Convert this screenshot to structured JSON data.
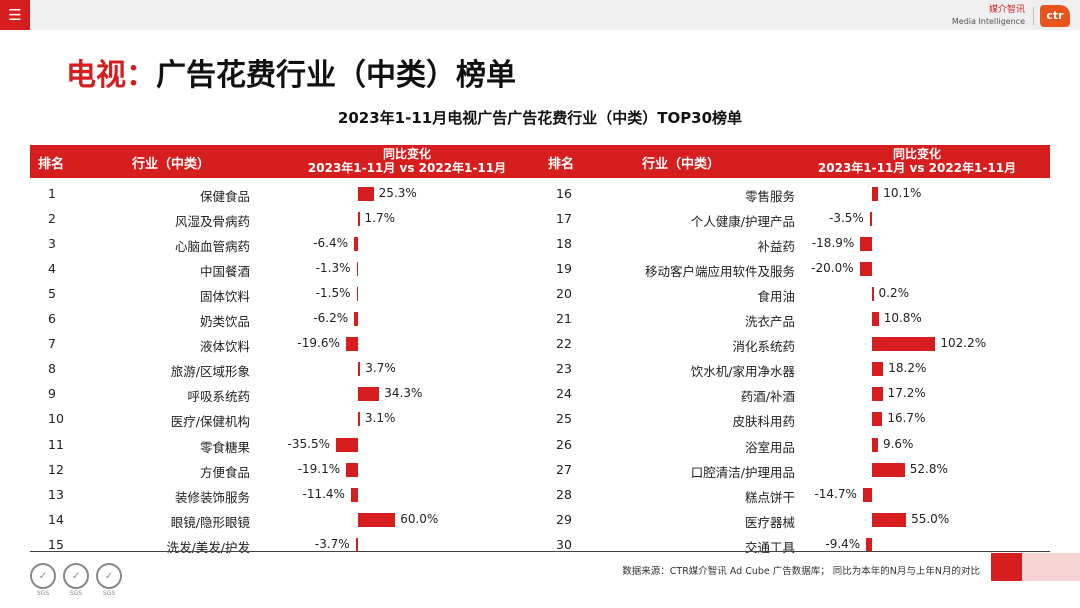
{
  "topbar": {
    "menu_icon": "☰",
    "brand_cn": "媒介智讯",
    "brand_en": "Media Intelligence",
    "brand_logo": "ctr"
  },
  "page_title": {
    "prefix": "电视：",
    "text": "广告花费行业（中类）榜单"
  },
  "headers": {
    "rank": "排名",
    "industry": "行业（中类）",
    "change_line1": "同比变化",
    "change_line2": "2023年1-11月 vs 2022年1-11月"
  },
  "source_note": "数据来源：CTR媒介智讯 Ad Cube 广告数据库； 同比为本年的N月与上年N月的对比",
  "certs": [
    "SGS",
    "SGS",
    "SGS"
  ],
  "colors": {
    "accent": "#d71e1e",
    "bar": "#d71e1e"
  },
  "chart_data": {
    "type": "bar",
    "title": "2023年1-11月电视广告广告花费行业（中类）TOP30榜单",
    "series_name": "同比变化 2023年1-11月 vs 2022年1-11月",
    "unit": "%",
    "rows": [
      {
        "rank": "1",
        "industry": "保健食品",
        "value": 25.3,
        "label": "25.3%"
      },
      {
        "rank": "2",
        "industry": "风湿及骨病药",
        "value": 1.7,
        "label": "1.7%"
      },
      {
        "rank": "3",
        "industry": "心脑血管病药",
        "value": -6.4,
        "label": "-6.4%"
      },
      {
        "rank": "4",
        "industry": "中国餐酒",
        "value": -1.3,
        "label": "-1.3%"
      },
      {
        "rank": "5",
        "industry": "固体饮料",
        "value": -1.5,
        "label": "-1.5%"
      },
      {
        "rank": "6",
        "industry": "奶类饮品",
        "value": -6.2,
        "label": "-6.2%"
      },
      {
        "rank": "7",
        "industry": "液体饮料",
        "value": -19.6,
        "label": "-19.6%"
      },
      {
        "rank": "8",
        "industry": "旅游/区域形象",
        "value": 3.7,
        "label": "3.7%"
      },
      {
        "rank": "9",
        "industry": "呼吸系统药",
        "value": 34.3,
        "label": "34.3%"
      },
      {
        "rank": "10",
        "industry": "医疗/保健机构",
        "value": 3.1,
        "label": "3.1%"
      },
      {
        "rank": "11",
        "industry": "零食糖果",
        "value": -35.5,
        "label": "-35.5%"
      },
      {
        "rank": "12",
        "industry": "方便食品",
        "value": -19.1,
        "label": "-19.1%"
      },
      {
        "rank": "13",
        "industry": "装修装饰服务",
        "value": -11.4,
        "label": "-11.4%"
      },
      {
        "rank": "14",
        "industry": "眼镜/隐形眼镜",
        "value": 60.0,
        "label": "60.0%"
      },
      {
        "rank": "15",
        "industry": "洗发/美发/护发",
        "value": -3.7,
        "label": "-3.7%"
      },
      {
        "rank": "16",
        "industry": "零售服务",
        "value": 10.1,
        "label": "10.1%"
      },
      {
        "rank": "17",
        "industry": "个人健康/护理产品",
        "value": -3.5,
        "label": "-3.5%"
      },
      {
        "rank": "18",
        "industry": "补益药",
        "value": -18.9,
        "label": "-18.9%"
      },
      {
        "rank": "19",
        "industry": "移动客户端应用软件及服务",
        "value": -20.0,
        "label": "-20.0%"
      },
      {
        "rank": "20",
        "industry": "食用油",
        "value": 0.2,
        "label": "0.2%"
      },
      {
        "rank": "21",
        "industry": "洗衣产品",
        "value": 10.8,
        "label": "10.8%"
      },
      {
        "rank": "22",
        "industry": "消化系统药",
        "value": 102.2,
        "label": "102.2%"
      },
      {
        "rank": "23",
        "industry": "饮水机/家用净水器",
        "value": 18.2,
        "label": "18.2%"
      },
      {
        "rank": "24",
        "industry": "药酒/补酒",
        "value": 17.2,
        "label": "17.2%"
      },
      {
        "rank": "25",
        "industry": "皮肤科用药",
        "value": 16.7,
        "label": "16.7%"
      },
      {
        "rank": "26",
        "industry": "浴室用品",
        "value": 9.6,
        "label": "9.6%"
      },
      {
        "rank": "27",
        "industry": "口腔清洁/护理用品",
        "value": 52.8,
        "label": "52.8%"
      },
      {
        "rank": "28",
        "industry": "糕点饼干",
        "value": -14.7,
        "label": "-14.7%"
      },
      {
        "rank": "29",
        "industry": "医疗器械",
        "value": 55.0,
        "label": "55.0%"
      },
      {
        "rank": "30",
        "industry": "交通工具",
        "value": -9.4,
        "label": "-9.4%"
      }
    ]
  }
}
